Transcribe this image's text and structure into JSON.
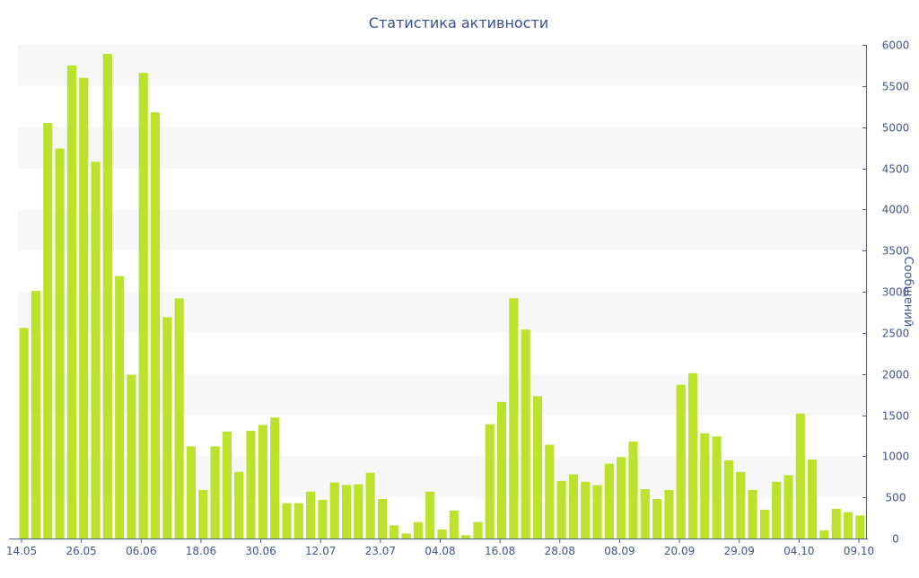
{
  "chart_data": {
    "type": "bar",
    "title": "Статистика активности",
    "ylabel": "Сообщений",
    "xlabel": "",
    "ylim": [
      0,
      6000
    ],
    "y_ticks": [
      0,
      500,
      1000,
      1500,
      2000,
      2500,
      3000,
      3500,
      4000,
      4500,
      5000,
      5500,
      6000
    ],
    "y_axis_side": "right",
    "x_tick_labels": [
      "14.05",
      "26.05",
      "06.06",
      "18.06",
      "30.06",
      "12.07",
      "23.07",
      "04.08",
      "16.08",
      "28.08",
      "08.09",
      "20.09",
      "29.09",
      "04.10",
      "09.10"
    ],
    "values": [
      2560,
      3010,
      5050,
      4740,
      5750,
      5600,
      4580,
      5890,
      3190,
      1990,
      5660,
      5180,
      2690,
      2920,
      1120,
      590,
      1120,
      1300,
      810,
      1310,
      1380,
      1470,
      430,
      430,
      570,
      470,
      680,
      650,
      660,
      800,
      480,
      160,
      60,
      200,
      570,
      110,
      340,
      40,
      200,
      1390,
      1660,
      2920,
      2540,
      1730,
      1140,
      700,
      780,
      690,
      650,
      910,
      990,
      1180,
      600,
      480,
      590,
      1870,
      2010,
      1280,
      1240,
      950,
      810,
      590,
      350,
      690,
      770,
      1520,
      960,
      100,
      360,
      320,
      280
    ],
    "colors": {
      "bar": "#bce22c",
      "band": "#f7f7f7",
      "axis": "#4a5d9c",
      "text": "#44558f"
    },
    "grid": "alternating-bands"
  }
}
